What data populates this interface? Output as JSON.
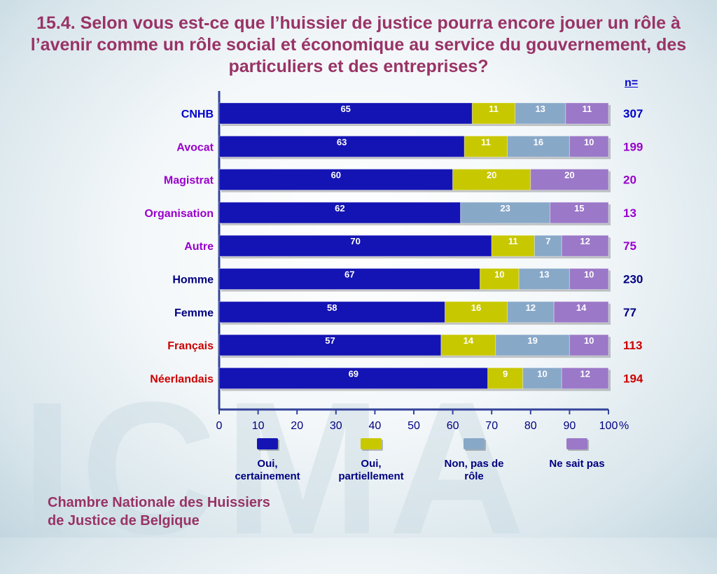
{
  "title": "15.4. Selon vous est-ce que l’huissier de justice pourra encore jouer un rôle à l’avenir comme un rôle social et économique au service du gouvernement, des particuliers et des entreprises?",
  "n_header": "n=",
  "footer": [
    "Chambre Nationale des Huissiers",
    "de Justice de Belgique"
  ],
  "watermark": "ICMA",
  "colors": {
    "oui_certainement": "#1414b4",
    "oui_partiellement": "#c8c800",
    "non": "#88a8c8",
    "ne_sait_pas": "#9b78c8"
  },
  "legend": [
    {
      "key": "oui_certainement",
      "label": "Oui, certainement",
      "lines": [
        "Oui,",
        "certainement"
      ]
    },
    {
      "key": "oui_partiellement",
      "label": "Oui, partiellement",
      "lines": [
        "Oui,",
        "partiellement"
      ]
    },
    {
      "key": "non",
      "label": "Non, pas de rôle",
      "lines": [
        "Non, pas de",
        "rôle"
      ]
    },
    {
      "key": "ne_sait_pas",
      "label": "Ne sait pas",
      "lines": [
        "Ne sait pas"
      ]
    }
  ],
  "chart_data": {
    "type": "bar",
    "orientation": "horizontal",
    "stacked": true,
    "categories": [
      "CNHB",
      "Avocat",
      "Magistrat",
      "Organisation",
      "Autre",
      "Homme",
      "Femme",
      "Français",
      "Néerlandais"
    ],
    "category_colors": [
      "#0000cc",
      "#9900cc",
      "#9900cc",
      "#9900cc",
      "#9900cc",
      "#000080",
      "#000080",
      "#cc0000",
      "#cc0000"
    ],
    "n": [
      "307",
      "199",
      "20",
      "13",
      "75",
      "230",
      "77",
      "113",
      "194"
    ],
    "series": [
      {
        "name": "Oui, certainement",
        "key": "oui_certainement",
        "values": [
          65,
          63,
          60,
          62,
          70,
          67,
          58,
          57,
          69
        ]
      },
      {
        "name": "Oui, partiellement",
        "key": "oui_partiellement",
        "values": [
          11,
          11,
          20,
          0,
          11,
          10,
          16,
          14,
          9
        ]
      },
      {
        "name": "Non, pas de rôle",
        "key": "non",
        "values": [
          13,
          16,
          0,
          23,
          7,
          13,
          12,
          19,
          10
        ]
      },
      {
        "name": "Ne sait pas",
        "key": "ne_sait_pas",
        "values": [
          11,
          10,
          20,
          15,
          12,
          10,
          14,
          10,
          12
        ]
      }
    ],
    "xlim": [
      0,
      100
    ],
    "xticks": [
      "0",
      "10",
      "20",
      "30",
      "40",
      "50",
      "60",
      "70",
      "80",
      "90",
      "100"
    ],
    "x_unit": "%"
  }
}
